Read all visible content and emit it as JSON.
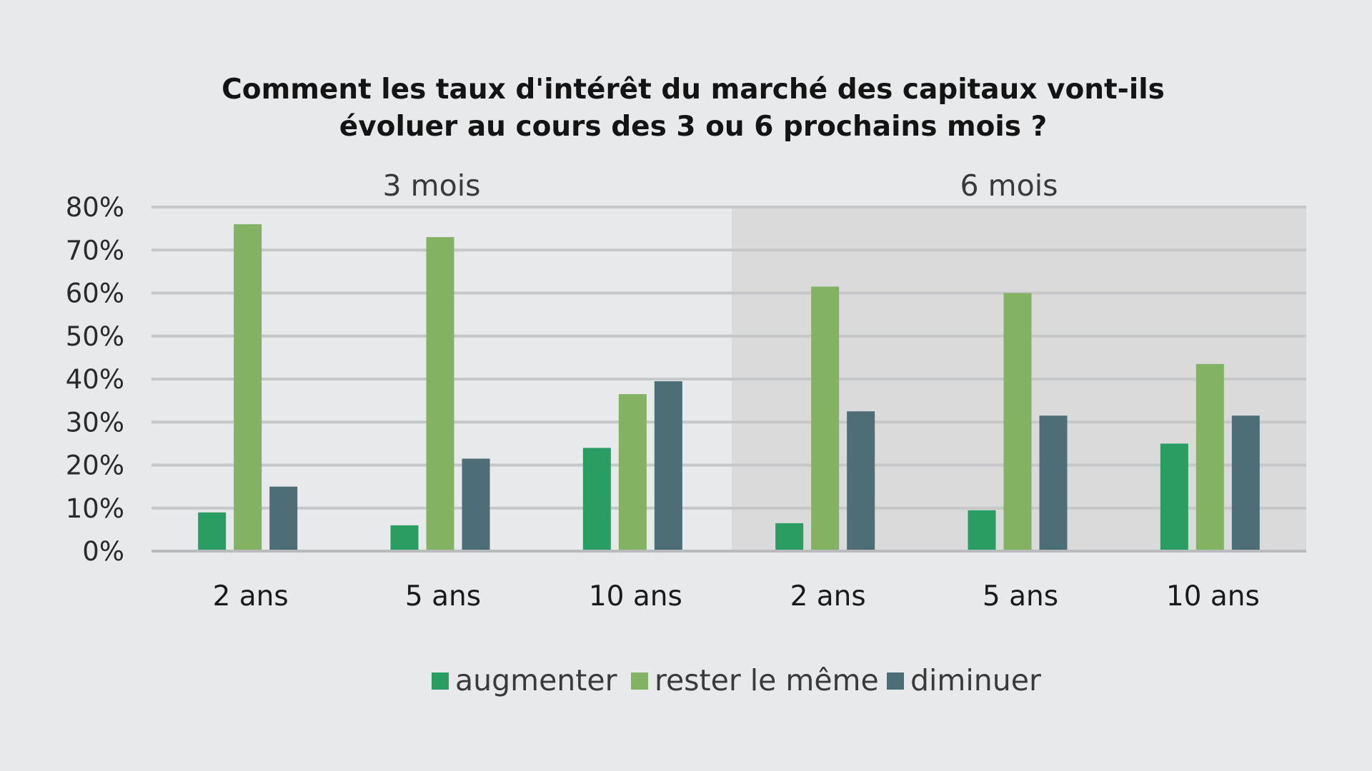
{
  "chart_data": {
    "type": "bar",
    "title": "Comment les taux d'intérêt du marché des capitaux vont-ils évoluer au cours des 3 ou 6 prochains mois ?",
    "title_lines": [
      "Comment les taux d'intérêt du marché des capitaux vont-ils",
      "évoluer au cours des 3 ou 6 prochains mois ?"
    ],
    "groups": [
      {
        "label": "3 mois",
        "categories": [
          "2 ans",
          "5 ans",
          "10 ans"
        ],
        "shaded": false
      },
      {
        "label": "6 mois",
        "categories": [
          "2 ans",
          "5 ans",
          "10 ans"
        ],
        "shaded": true
      }
    ],
    "categories": [
      "2 ans",
      "5 ans",
      "10 ans",
      "2 ans",
      "5 ans",
      "10 ans"
    ],
    "series": [
      {
        "name": "augmenter",
        "color": "#2a9d63",
        "values": [
          9,
          6,
          24,
          6.5,
          9.5,
          25
        ]
      },
      {
        "name": "rester le même",
        "color": "#82b262",
        "values": [
          76,
          73,
          36.5,
          61.5,
          60,
          43.5
        ]
      },
      {
        "name": "diminuer",
        "color": "#4d6e77",
        "values": [
          15,
          21.5,
          39.5,
          32.5,
          31.5,
          31.5
        ]
      }
    ],
    "y_ticks": [
      "0%",
      "10%",
      "20%",
      "30%",
      "40%",
      "50%",
      "60%",
      "70%",
      "80%"
    ],
    "ylim": [
      0,
      80
    ],
    "y_unit": "%",
    "xlabel": "",
    "ylabel": "",
    "grid": true,
    "legend_position": "bottom",
    "colors": {
      "background": "#e8e9ea",
      "shaded_panel": "#dadadb",
      "gridline": "#c6c7c8",
      "axis": "#b9babb"
    }
  }
}
